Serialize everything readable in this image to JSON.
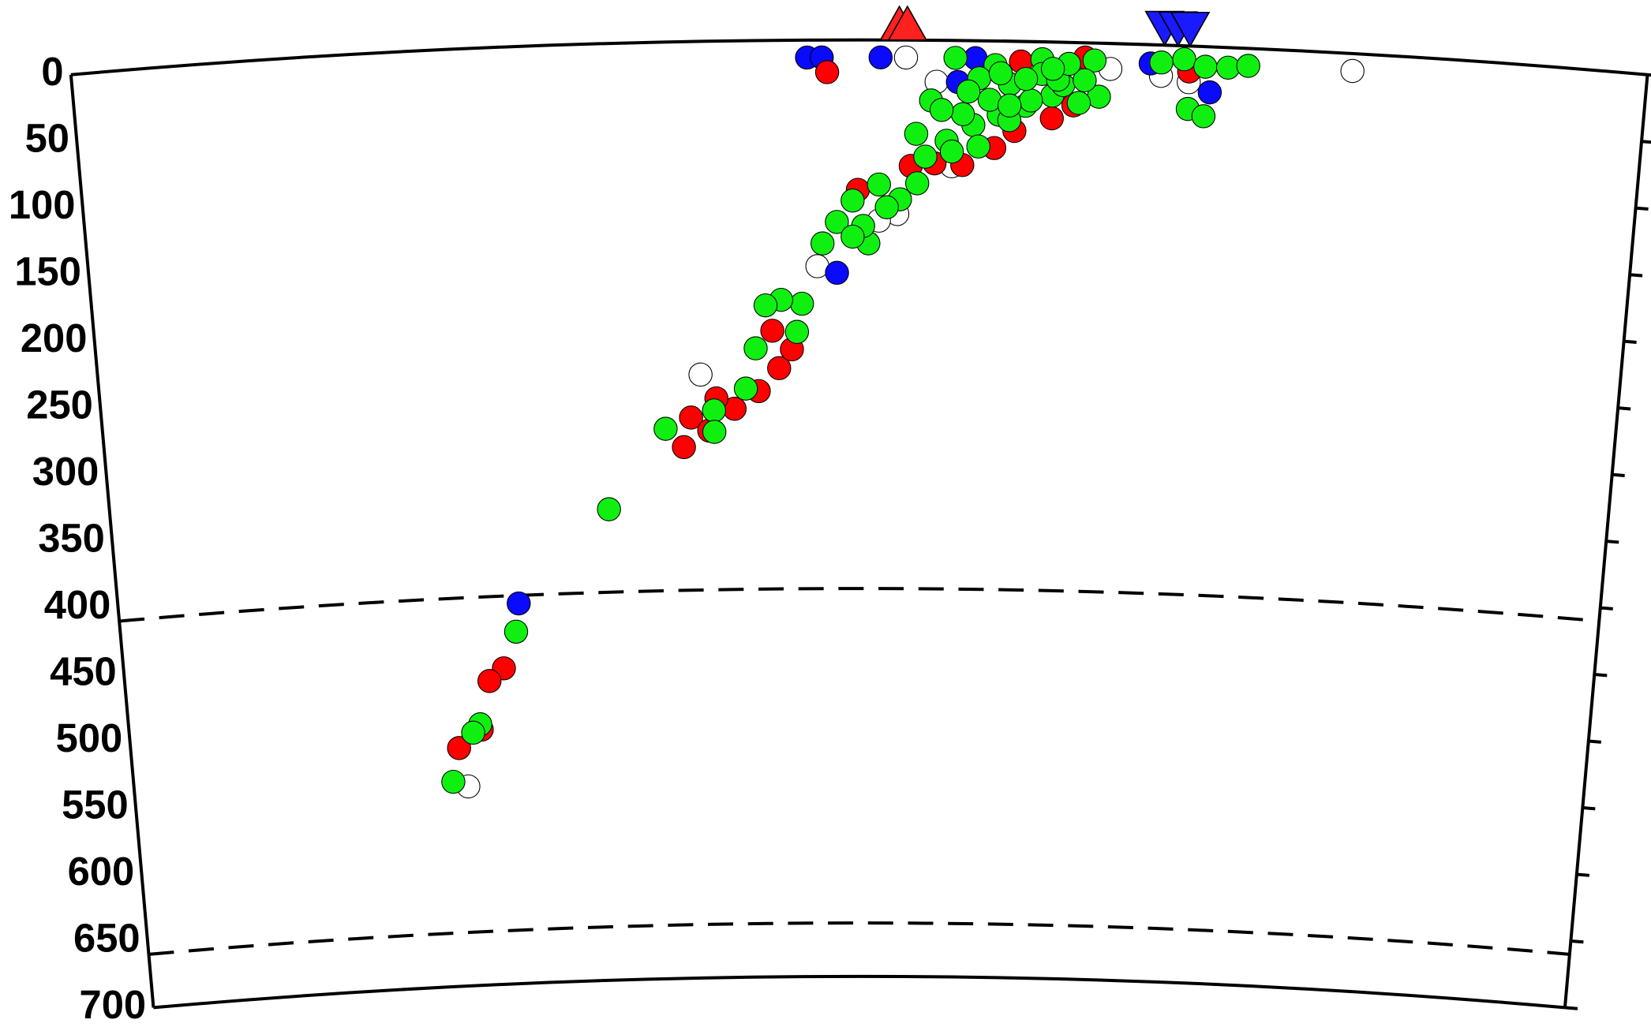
{
  "chart_data": {
    "type": "scatter",
    "xlim": [
      -589,
      589
    ],
    "ylim": [
      0,
      700
    ],
    "yticks": [
      0,
      50,
      100,
      150,
      200,
      250,
      300,
      350,
      400,
      450,
      500,
      550,
      600,
      650,
      700
    ],
    "reference_depths": [
      410,
      660
    ],
    "markers": [
      {
        "shape": "triangle-up",
        "color": "#ff2020",
        "x": [
          30,
          36
        ]
      },
      {
        "shape": "triangle-down",
        "color": "#1a1aff",
        "x": [
          228,
          238,
          247
        ]
      }
    ],
    "series": [
      {
        "color": "#ffffff",
        "x": [
          35,
          369,
          188,
          226,
          247,
          58,
          -32,
          -123,
          29,
          -318,
          70,
          15
        ],
        "values": [
          13,
          13,
          19,
          23,
          27,
          31,
          169,
          249,
          130,
          551,
          94,
          135
        ]
      },
      {
        "color": "#0a0aff",
        "x": [
          -39,
          -28,
          16,
          87,
          218,
          263,
          -17,
          -271,
          74
        ],
        "values": [
          13,
          13,
          13,
          13,
          14,
          34,
          174,
          416,
          31
        ]
      },
      {
        "color": "#ff0000",
        "x": [
          -24,
          -1,
          39,
          57,
          78,
          102,
          117,
          145,
          161,
          169,
          121,
          -62,
          -52,
          -67,
          -78,
          -97,
          -111,
          -131,
          -137,
          -117,
          -285,
          -297,
          -305,
          -324,
          247
        ],
        "values": [
          24,
          112,
          94,
          92,
          93,
          80,
          67,
          57,
          47,
          11,
          15,
          245,
          231,
          217,
          262,
          275,
          267,
          281,
          303,
          291,
          464,
          473,
          509,
          522,
          19
        ]
      },
      {
        "color": "#10f010",
        "x": [
          72,
          102,
          137,
          176,
          180,
          165,
          145,
          125,
          105,
          86,
          66,
          54,
          43,
          44,
          31,
          15,
          -5,
          -17,
          -28,
          7,
          -44,
          -60,
          -72,
          -48,
          -80,
          -88,
          -113,
          -113,
          -151,
          -197,
          -274,
          -306,
          -312,
          -330,
          226,
          243,
          259,
          276,
          291,
          247,
          259,
          90,
          113,
          137,
          153,
          129,
          98,
          78,
          113,
          149,
          169,
          125,
          82,
          62,
          70,
          90,
          50,
          113,
          157,
          145,
          106,
          3,
          -5,
          21
        ],
        "values": [
          13,
          18,
          13,
          13,
          40,
          45,
          40,
          48,
          55,
          63,
          75,
          45,
          70,
          107,
          119,
          108,
          120,
          136,
          152,
          152,
          197,
          194,
          198,
          218,
          230,
          260,
          276,
          292,
          289,
          348,
          437,
          505,
          511,
          547,
          13,
          10,
          15,
          15,
          13,
          47,
          52,
          28,
          32,
          24,
          32,
          44,
          44,
          55,
          59,
          28,
          28,
          28,
          38,
          52,
          83,
          79,
          87,
          48,
          16,
          20,
          24,
          139,
          147,
          125
        ]
      }
    ]
  }
}
